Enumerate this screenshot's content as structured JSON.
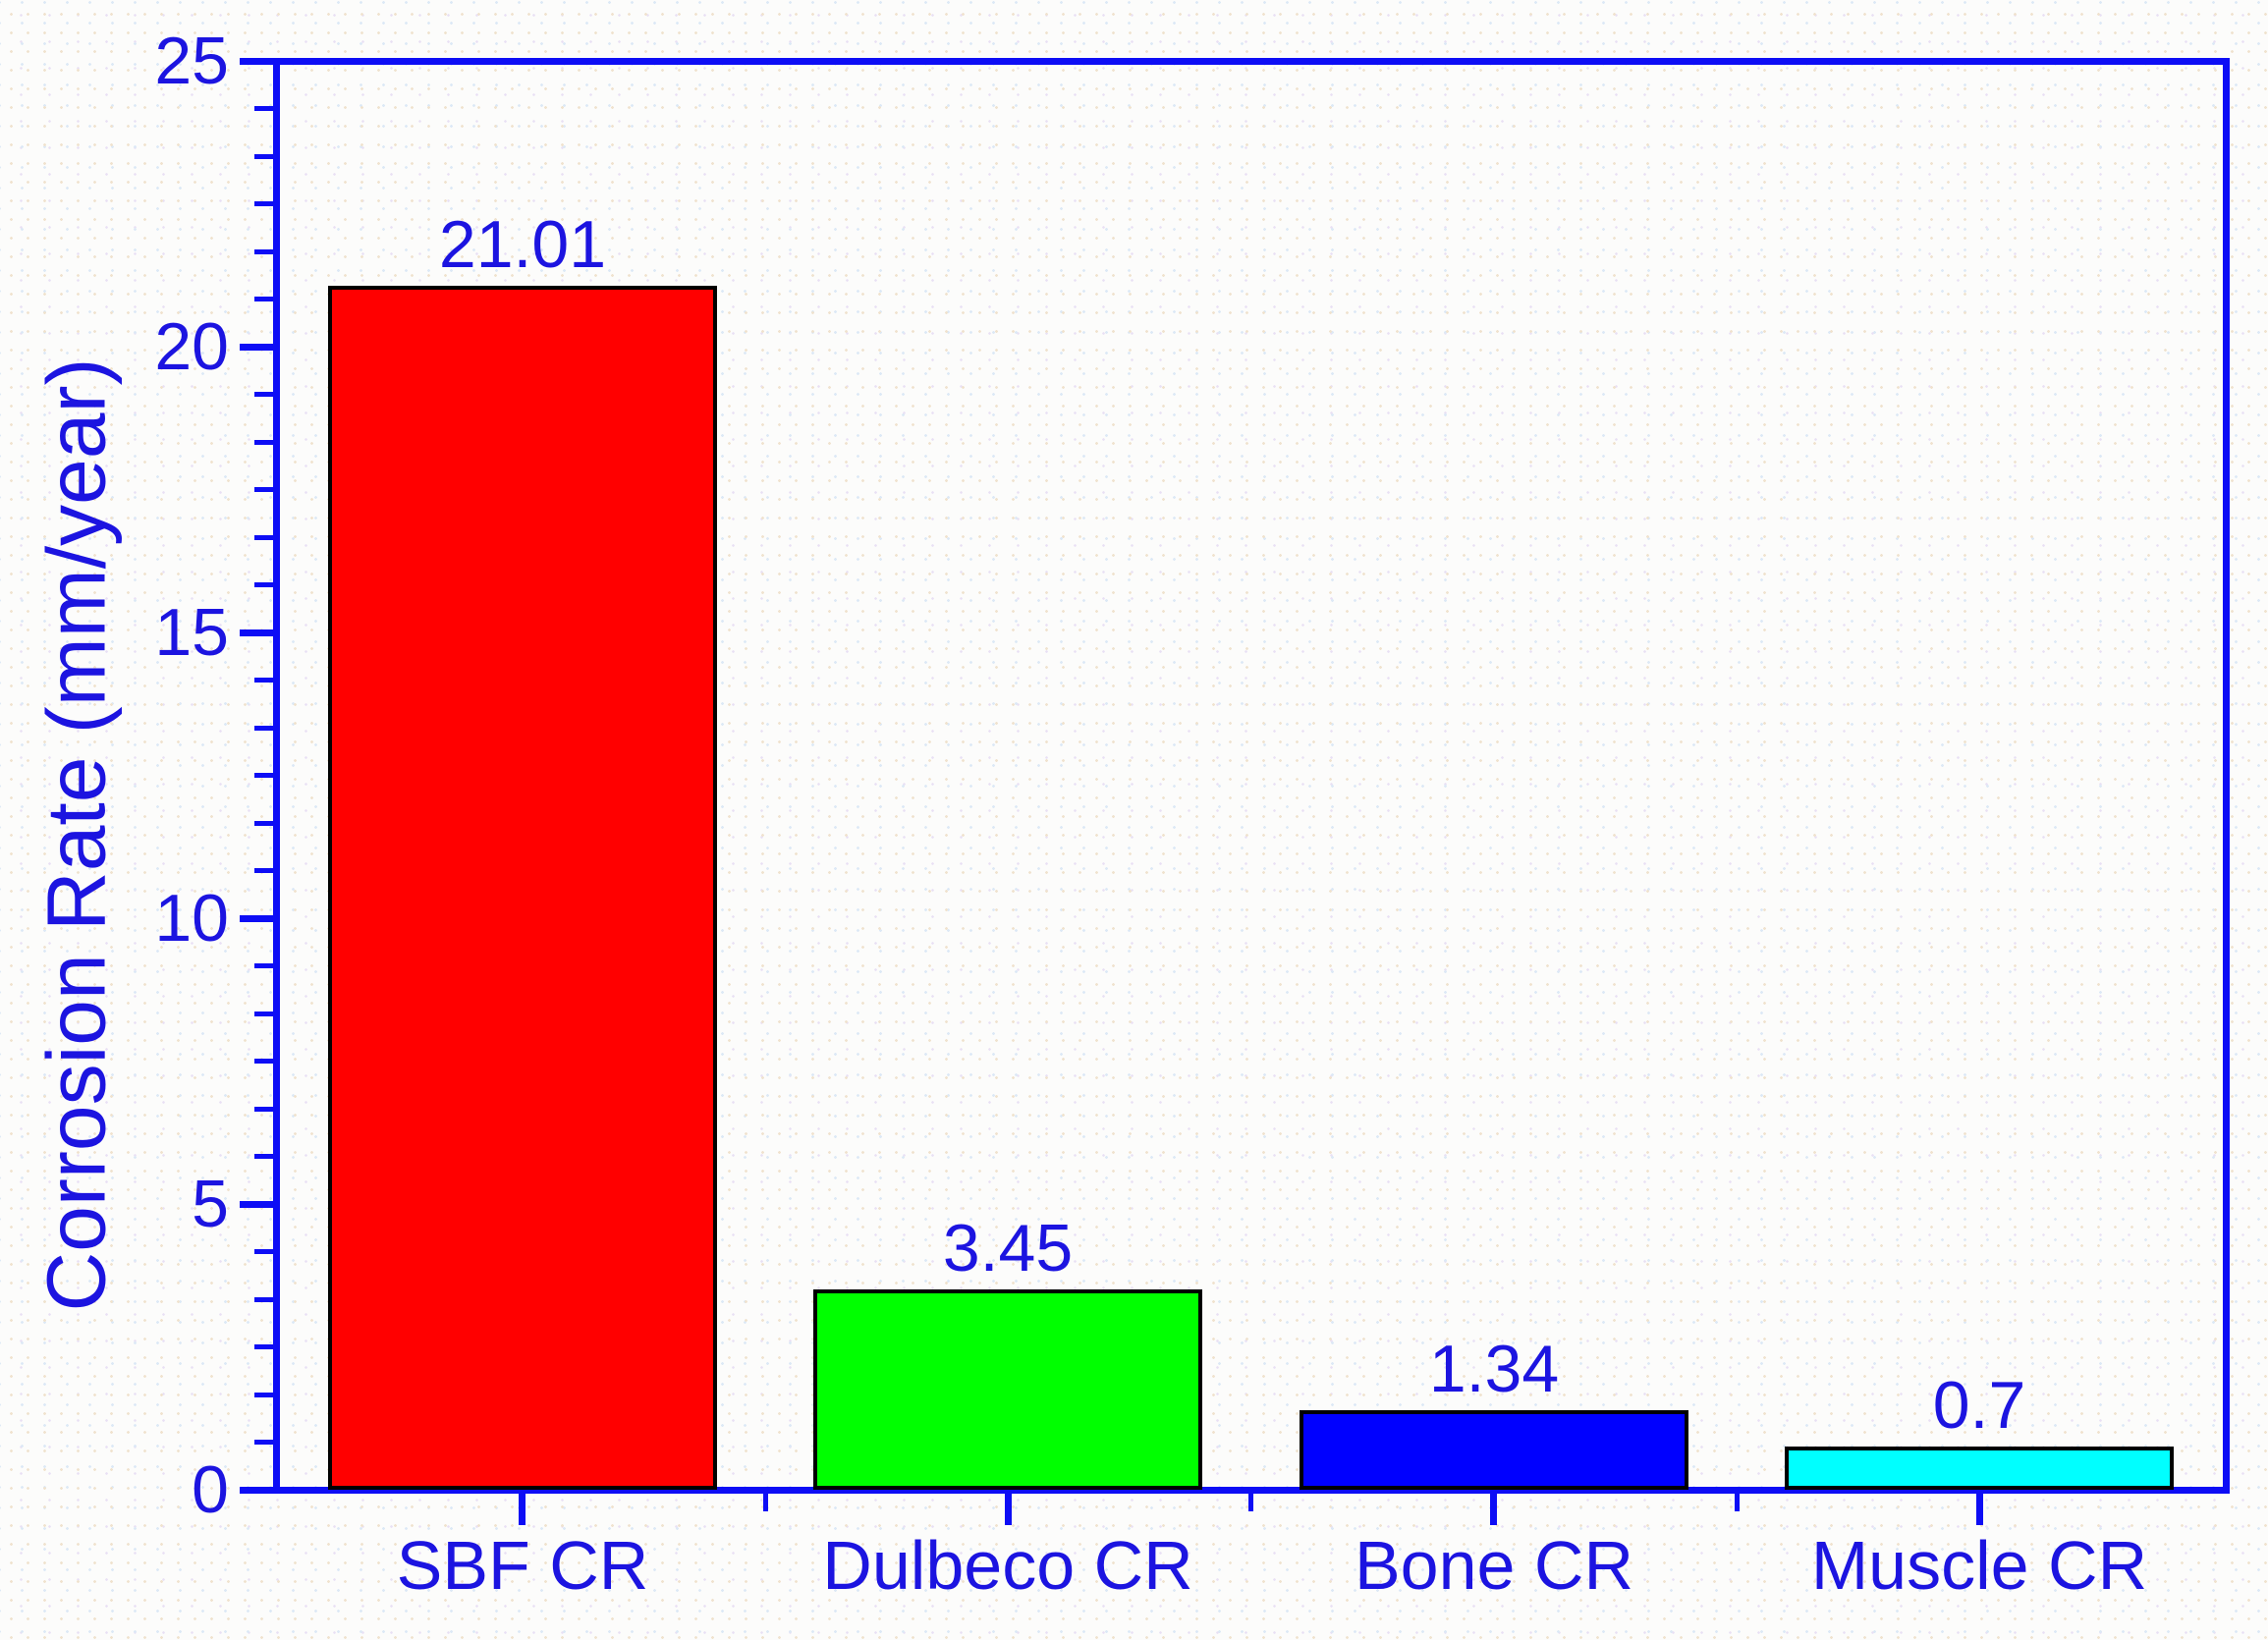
{
  "chart_data": {
    "type": "bar",
    "title": "",
    "xlabel": "",
    "ylabel": "Corrosion Rate (mm/year)",
    "categories": [
      "SBF CR",
      "Dulbeco CR",
      "Bone CR",
      "Muscle CR"
    ],
    "values": [
      21.01,
      3.45,
      1.34,
      0.7
    ],
    "value_labels": [
      "21.01",
      "3.45",
      "1.34",
      "0.7"
    ],
    "bar_colors": [
      "#ff0000",
      "#00ff00",
      "#0000ff",
      "#00ffff"
    ],
    "bar_border_color": "#000000",
    "ylim": [
      0,
      25
    ],
    "yticks": [
      0,
      5,
      10,
      15,
      20,
      25
    ],
    "ytick_labels": [
      "0",
      "5",
      "10",
      "15",
      "20",
      "25"
    ],
    "y_minor_divisions": 6,
    "bar_width_frac": 0.8,
    "grid": false,
    "legend": null,
    "axis_color": "#0d0df5",
    "text_color": "#1c14e0",
    "plot_background": "none"
  }
}
